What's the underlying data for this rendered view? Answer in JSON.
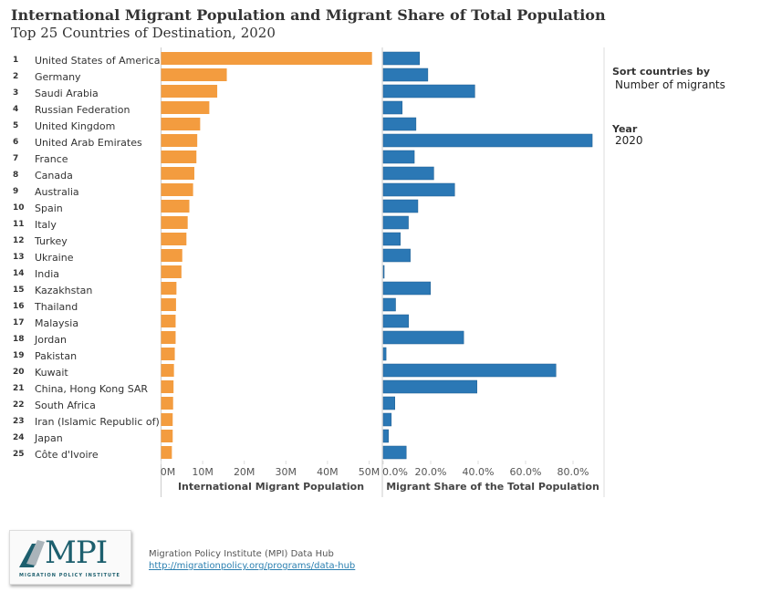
{
  "header": {
    "title": "International Migrant Population and Migrant Share of Total Population",
    "subtitle": "Top 25 Countries of Destination, 2020"
  },
  "controls": {
    "sort_label": "Sort countries by",
    "sort_value": "Number of migrants",
    "year_label": "Year",
    "year_value": "2020"
  },
  "footer": {
    "logo_text": "MPI",
    "logo_sub": "MIGRATION POLICY INSTITUTE",
    "source": "Migration Policy Institute (MPI) Data Hub",
    "link": "http://migrationpolicy.org/programs/data-hub"
  },
  "colors": {
    "population": "#f39c3f",
    "share": "#2b78b5"
  },
  "chart_data": [
    {
      "type": "bar",
      "orientation": "horizontal",
      "title": "International Migrant Population",
      "xlabel": "International Migrant Population",
      "xlim": [
        0,
        50
      ],
      "unit": "M",
      "ticks": [
        "0M",
        "10M",
        "20M",
        "30M",
        "40M",
        "50M"
      ],
      "categories": [
        "United States of America",
        "Germany",
        "Saudi Arabia",
        "Russian Federation",
        "United Kingdom",
        "United Arab Emirates",
        "France",
        "Canada",
        "Australia",
        "Spain",
        "Italy",
        "Turkey",
        "Ukraine",
        "India",
        "Kazakhstan",
        "Thailand",
        "Malaysia",
        "Jordan",
        "Pakistan",
        "Kuwait",
        "China, Hong Kong SAR",
        "South Africa",
        "Iran (Islamic Republic of)",
        "Japan",
        "Côte d'Ivoire"
      ],
      "values": [
        50.7,
        15.8,
        13.5,
        11.6,
        9.4,
        8.7,
        8.5,
        8.0,
        7.7,
        6.8,
        6.4,
        6.1,
        5.1,
        4.9,
        3.7,
        3.6,
        3.5,
        3.5,
        3.3,
        3.1,
        3.0,
        2.9,
        2.8,
        2.8,
        2.6
      ]
    },
    {
      "type": "bar",
      "orientation": "horizontal",
      "title": "Migrant Share of the Total Population",
      "xlabel": "Migrant Share of the Total Population",
      "xlim": [
        0,
        88
      ],
      "unit": "%",
      "ticks": [
        "0.0%",
        "20.0%",
        "40.0%",
        "60.0%",
        "80.0%"
      ],
      "values": [
        15.3,
        18.8,
        38.6,
        8.0,
        13.8,
        88.1,
        13.1,
        21.3,
        30.1,
        14.6,
        10.6,
        7.2,
        11.4,
        0.4,
        19.9,
        5.2,
        10.7,
        33.9,
        1.2,
        72.8,
        39.5,
        4.9,
        3.4,
        2.2,
        9.7
      ]
    }
  ]
}
